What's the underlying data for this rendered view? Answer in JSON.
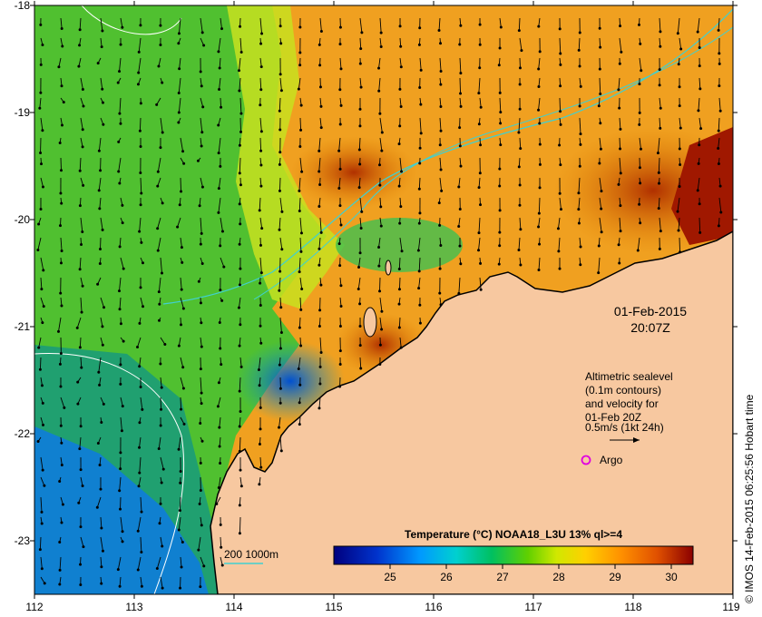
{
  "map": {
    "lon_ticks": [
      "112",
      "113",
      "114",
      "115",
      "116",
      "117",
      "118",
      "119"
    ],
    "lat_ticks": [
      "-18",
      "-19",
      "-20",
      "-21",
      "-22",
      "-23"
    ],
    "timestamp": {
      "date": "01-Feb-2015",
      "time": "20:07Z"
    },
    "altimetry_legend": {
      "line1": "Altimetric sealevel",
      "line2": "(0.1m contours)",
      "line3": "and velocity for",
      "line4": "01-Feb 20Z",
      "line5": "0.5m/s (1kt 24h)"
    },
    "argo_label": "Argo",
    "depth_legend": "200  1000m",
    "colorbar": {
      "title": "Temperature (°C) NOAA18_L3U 13% ql>=4",
      "ticks": [
        "25",
        "26",
        "27",
        "28",
        "29",
        "30"
      ]
    },
    "credit": "© IMOS 14-Feb-2015 06:25:56 Hobart time",
    "colors": {
      "land": "#f7c8a0",
      "cold": "#00007f",
      "warm": "#8b0000",
      "argo": "#e000e0",
      "isobath": "#40d0d0"
    }
  }
}
